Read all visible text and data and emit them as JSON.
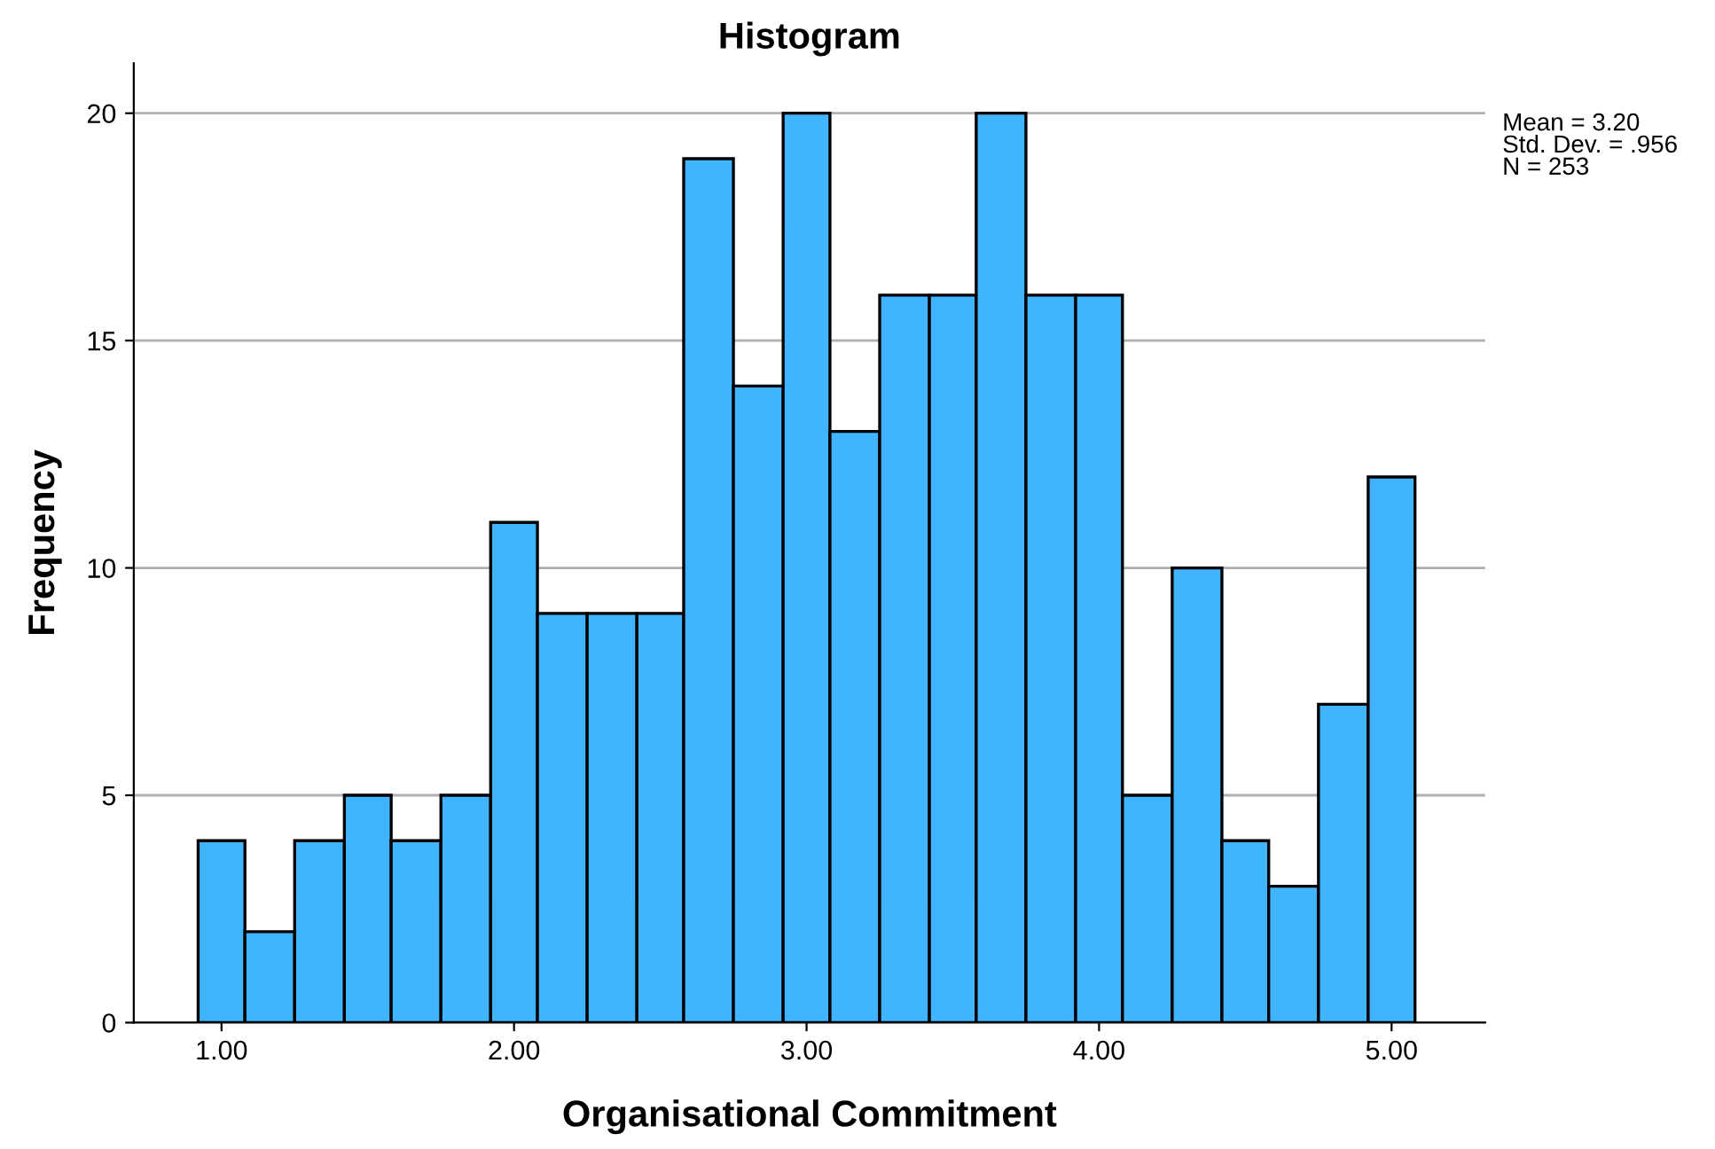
{
  "chart_data": {
    "type": "histogram",
    "title": "Histogram",
    "xlabel": "Organisational Commitment",
    "ylabel": "Frequency",
    "bins": [
      0.92,
      1.08,
      1.25,
      1.42,
      1.58,
      1.75,
      1.92,
      2.08,
      2.25,
      2.42,
      2.58,
      2.75,
      2.92,
      3.08,
      3.25,
      3.42,
      3.58,
      3.75,
      3.92,
      4.08,
      4.25,
      4.42,
      4.58,
      4.75,
      4.92,
      5.08
    ],
    "values": [
      4,
      2,
      4,
      5,
      4,
      5,
      11,
      9,
      9,
      9,
      19,
      14,
      20,
      13,
      16,
      16,
      20,
      16,
      16,
      5,
      10,
      4,
      3,
      7,
      12
    ],
    "color": "#40b4ff",
    "xlim": [
      0.7,
      5.32
    ],
    "xticks": [
      {
        "value": 1,
        "label": "1.00"
      },
      {
        "value": 2,
        "label": "2.00"
      },
      {
        "value": 3,
        "label": "3.00"
      },
      {
        "value": 4,
        "label": "4.00"
      },
      {
        "value": 5,
        "label": "5.00"
      }
    ],
    "ylim": [
      0,
      21.1
    ],
    "yticks": [
      0,
      5,
      10,
      15,
      20
    ],
    "grid": "y",
    "annotations": [
      "Mean = 3.20\nStd. Dev. = .956\nN = 253"
    ]
  }
}
